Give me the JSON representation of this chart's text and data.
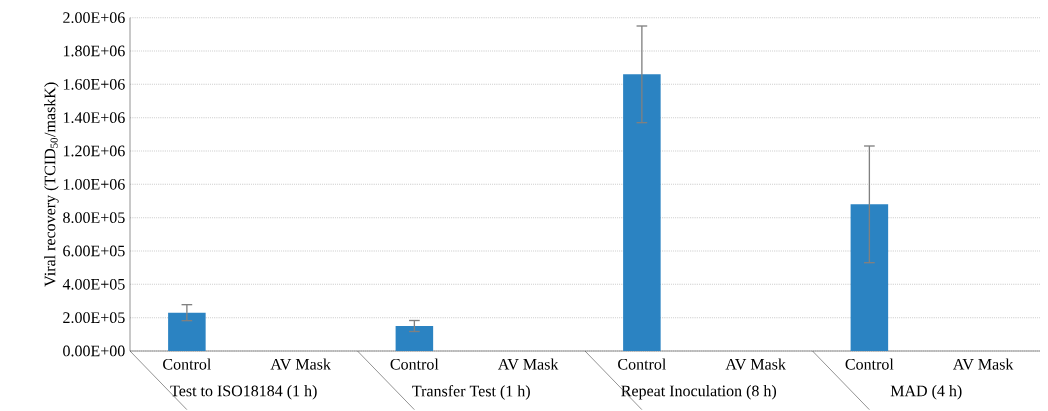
{
  "chart_data": {
    "type": "bar",
    "ylabel": "Viral recovery (TCID$_{50}$/maskK)",
    "categories": [
      "Control",
      "AV Mask",
      "Control",
      "AV Mask",
      "Control",
      "AV Mask",
      "Control",
      "AV Mask"
    ],
    "values": [
      230000,
      0,
      150000,
      0,
      1660000,
      0,
      880000,
      0
    ],
    "errors": [
      48000,
      null,
      33000,
      null,
      290000,
      null,
      350000,
      null
    ],
    "color": "#2b83c2",
    "ylim": [
      0,
      2000000
    ],
    "yticks": [
      {
        "value": 0,
        "label": "0.00E+00"
      },
      {
        "value": 200000,
        "label": "2.00E+05"
      },
      {
        "value": 400000,
        "label": "4.00E+05"
      },
      {
        "value": 600000,
        "label": "6.00E+05"
      },
      {
        "value": 800000,
        "label": "8.00E+05"
      },
      {
        "value": 1000000,
        "label": "1.00E+06"
      },
      {
        "value": 1200000,
        "label": "1.20E+06"
      },
      {
        "value": 1400000,
        "label": "1.40E+06"
      },
      {
        "value": 1600000,
        "label": "1.60E+06"
      },
      {
        "value": 1800000,
        "label": "1.80E+06"
      },
      {
        "value": 2000000,
        "label": "2.00E+06"
      }
    ],
    "grid": "y",
    "annotations": [
      "Test to ISO18184 (1 h)",
      "Transfer Test (1 h)",
      "Repeat Inoculation (8 h)",
      "MAD (4 h)"
    ]
  }
}
